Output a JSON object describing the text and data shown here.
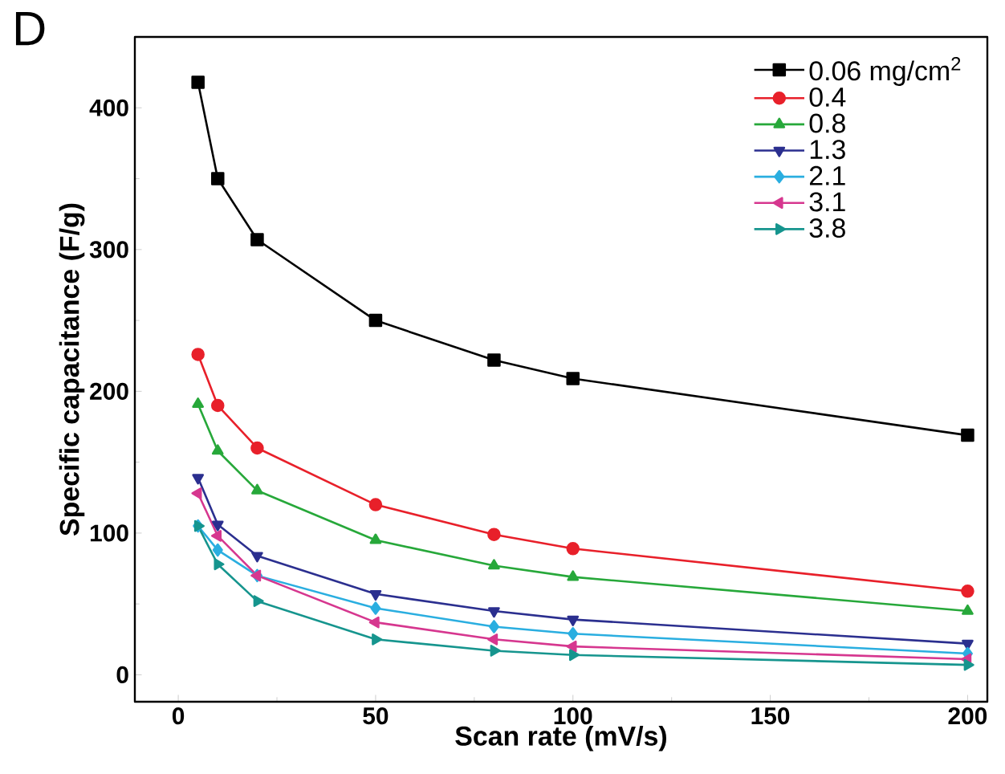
{
  "chart_data": {
    "type": "line",
    "xlabel": "Scan rate (mV/s)",
    "ylabel": "Specific capacitance (F/g)",
    "annotations": [
      "D"
    ],
    "x": [
      5,
      10,
      20,
      50,
      80,
      100,
      200
    ],
    "series": [
      {
        "name": "0.06 mg/cm$^{2}$",
        "color": "#000000",
        "marker": "square",
        "values": [
          418,
          350,
          307,
          250,
          222,
          209,
          169
        ]
      },
      {
        "name": "0.4",
        "color": "#e8202a",
        "marker": "circle",
        "values": [
          226,
          190,
          160,
          120,
          99,
          89,
          59
        ]
      },
      {
        "name": "0.8",
        "color": "#27a83a",
        "marker": "triangle",
        "values": [
          191,
          158,
          130,
          95,
          77,
          69,
          45
        ]
      },
      {
        "name": "1.3",
        "color": "#2b2f8f",
        "marker": "triangle_down",
        "values": [
          139,
          106,
          84,
          57,
          45,
          39,
          22
        ]
      },
      {
        "name": "2.1",
        "color": "#2aaee0",
        "marker": "diamond",
        "values": [
          105,
          88,
          70,
          47,
          34,
          29,
          15
        ]
      },
      {
        "name": "3.1",
        "color": "#d6378f",
        "marker": "triangle_left",
        "values": [
          128,
          98,
          70,
          37,
          25,
          20,
          11
        ]
      },
      {
        "name": "3.8",
        "color": "#16958e",
        "marker": "triangle_right",
        "values": [
          105,
          78,
          52,
          25,
          17,
          14,
          7
        ]
      }
    ],
    "xlim": [
      -11,
      205
    ],
    "ylim": [
      -19,
      450
    ],
    "xticks": [
      0,
      50,
      100,
      150,
      200
    ],
    "yticks": [
      0,
      100,
      200,
      300,
      400
    ],
    "legend": "top right",
    "grid": false,
    "line_style": "solid"
  }
}
